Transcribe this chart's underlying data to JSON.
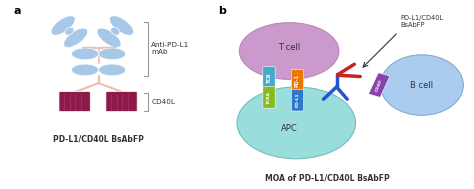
{
  "panel_a_label": "a",
  "panel_b_label": "b",
  "antibody_color": "#a8c8e8",
  "cd40l_color": "#8b1a4a",
  "cd40l_stripe_color": "#b03060",
  "hinge_color": "#e8c0b0",
  "label_anti_pdl1": "Anti-PD-L1\nmAb",
  "label_cd40l": "CD40L",
  "label_pdl1_bsabfp": "PD-L1/CD40L BsAbFP",
  "moa_title": "MOA of PD-L1/CD40L BsAbFP",
  "tcell_color": "#cc99cc",
  "tcell_ec": "#b888b8",
  "apc_color": "#99dddd",
  "apc_ec": "#77bbbb",
  "bcell_color": "#aaccee",
  "bcell_ec": "#88aacc",
  "tcr_color": "#44aacc",
  "pd1_color": "#ee7700",
  "tcra_color": "#88bb22",
  "pdl1_color": "#3377cc",
  "cd40_color": "#8844aa",
  "ab_red_color": "#cc2222",
  "ab_blue_color": "#2255cc",
  "bg_color": "#ffffff",
  "text_color": "#333333",
  "bracket_color": "#999999",
  "arrow_color": "#333333",
  "pdl1_bsabfp_label": "PD-L1/CD40L\nBsAbFP"
}
